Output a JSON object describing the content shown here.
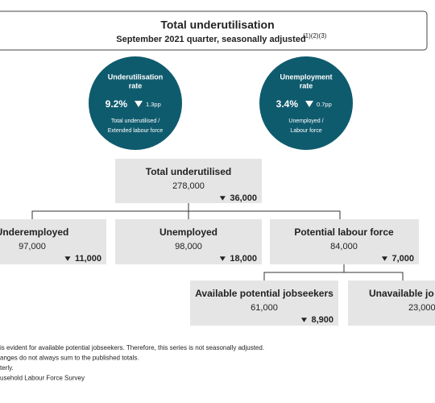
{
  "header": {
    "title": "Total underutilisation",
    "subtitle": "September 2021 quarter, seasonally adjusted",
    "footnote_refs": "(1)(2)(3)"
  },
  "circles": [
    {
      "title": [
        "Underutilisation",
        "rate"
      ],
      "value": "9.2%",
      "change": "1.3pp",
      "note": [
        "Total underutilised /",
        "Extended labour force"
      ]
    },
    {
      "title": [
        "Unemployment",
        "rate"
      ],
      "value": "3.4%",
      "change": "0.7pp",
      "note": [
        "Unemployed /",
        "Labour force"
      ]
    }
  ],
  "boxes": [
    {
      "label": "Total underutilised",
      "value": "278,000",
      "change": "36,000"
    },
    {
      "label": "Underemployed",
      "value": "97,000",
      "change": "11,000"
    },
    {
      "label": "Unemployed",
      "value": "98,000",
      "change": "18,000"
    },
    {
      "label": "Potential labour force",
      "value": "84,000",
      "change": "7,000"
    },
    {
      "label": "Available potential jobseekers",
      "value": "61,000",
      "change": "8,900"
    },
    {
      "label": "Unavailable jo",
      "value": "23,000"
    }
  ],
  "footnotes": [
    "is evident for available potential jobseekers. Therefore, this series is not seasonally adjusted.",
    "anges do not always sum to the published totals.",
    "terly.",
    "usehold Labour Force Survey"
  ]
}
